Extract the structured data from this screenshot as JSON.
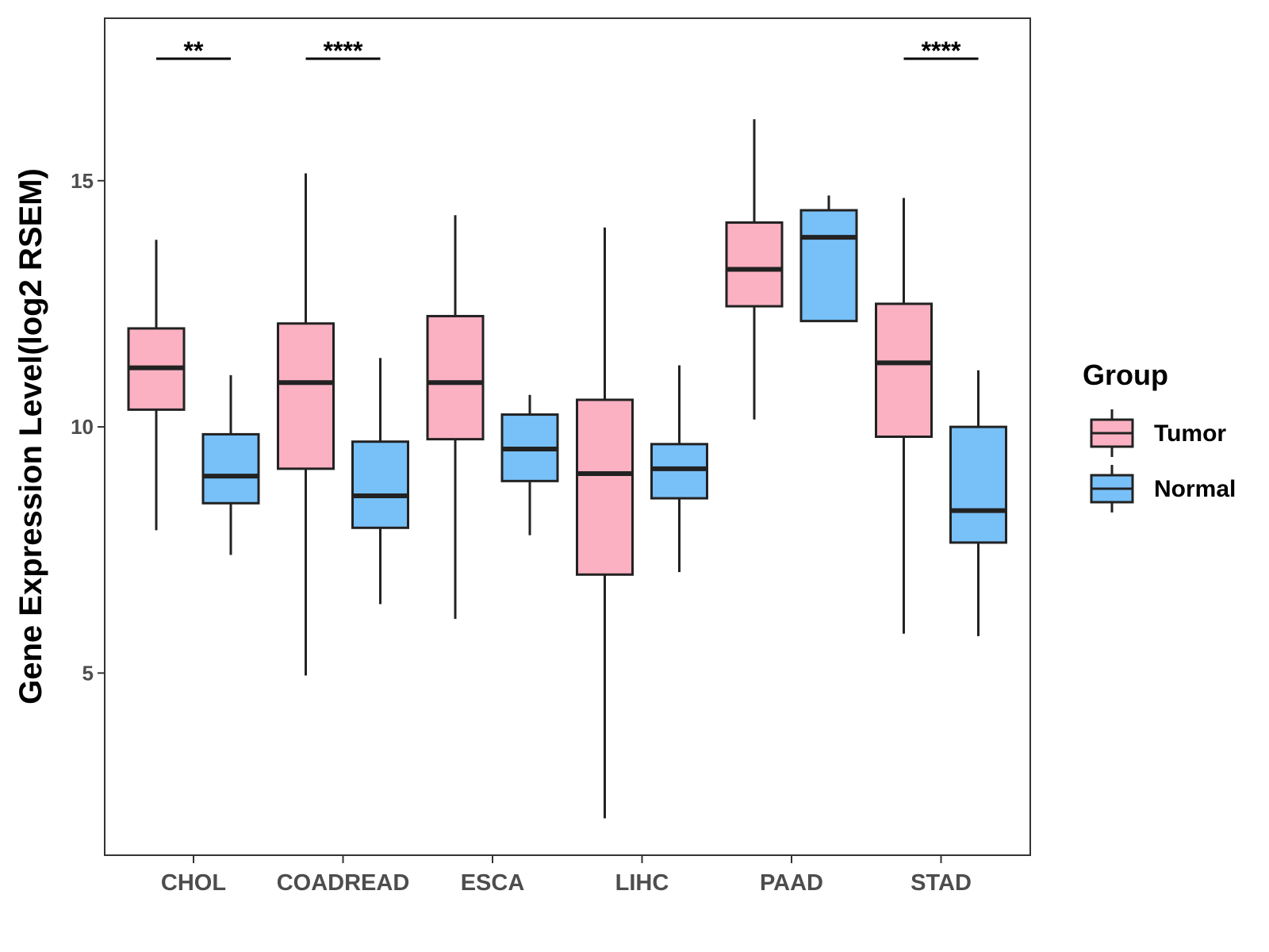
{
  "chart_data": {
    "type": "boxplot",
    "title": "",
    "xlabel": "",
    "ylabel": "Gene Expression Level(log2 RSEM)",
    "ylim": [
      1.3,
      18.3
    ],
    "yticks": [
      5,
      10,
      15
    ],
    "categories": [
      "CHOL",
      "COADREAD",
      "ESCA",
      "LIHC",
      "PAAD",
      "STAD"
    ],
    "legend": {
      "title": "Group",
      "placement": "right",
      "entries": [
        {
          "name": "Tumor",
          "color": "#FBB1C2"
        },
        {
          "name": "Normal",
          "color": "#78C0F8"
        }
      ]
    },
    "series": [
      {
        "name": "Tumor",
        "color": "#FBB1C2",
        "boxes": [
          {
            "category": "CHOL",
            "whisker_low": 7.9,
            "q1": 10.35,
            "median": 11.2,
            "q3": 12.0,
            "whisker_high": 13.8
          },
          {
            "category": "COADREAD",
            "whisker_low": 4.95,
            "q1": 9.15,
            "median": 10.9,
            "q3": 12.1,
            "whisker_high": 15.15
          },
          {
            "category": "ESCA",
            "whisker_low": 6.1,
            "q1": 9.75,
            "median": 10.9,
            "q3": 12.25,
            "whisker_high": 14.3
          },
          {
            "category": "LIHC",
            "whisker_low": 2.05,
            "q1": 7.0,
            "median": 9.05,
            "q3": 10.55,
            "whisker_high": 14.05
          },
          {
            "category": "PAAD",
            "whisker_low": 10.15,
            "q1": 12.45,
            "median": 13.2,
            "q3": 14.15,
            "whisker_high": 16.25
          },
          {
            "category": "STAD",
            "whisker_low": 5.8,
            "q1": 9.8,
            "median": 11.3,
            "q3": 12.5,
            "whisker_high": 14.65
          }
        ]
      },
      {
        "name": "Normal",
        "color": "#78C0F8",
        "boxes": [
          {
            "category": "CHOL",
            "whisker_low": 7.4,
            "q1": 8.45,
            "median": 9.0,
            "q3": 9.85,
            "whisker_high": 11.05
          },
          {
            "category": "COADREAD",
            "whisker_low": 6.4,
            "q1": 7.95,
            "median": 8.6,
            "q3": 9.7,
            "whisker_high": 11.4
          },
          {
            "category": "ESCA",
            "whisker_low": 7.8,
            "q1": 8.9,
            "median": 9.55,
            "q3": 10.25,
            "whisker_high": 10.65
          },
          {
            "category": "LIHC",
            "whisker_low": 7.05,
            "q1": 8.55,
            "median": 9.15,
            "q3": 9.65,
            "whisker_high": 11.25
          },
          {
            "category": "PAAD",
            "whisker_low": 12.15,
            "q1": 12.15,
            "median": 13.85,
            "q3": 14.4,
            "whisker_high": 14.7
          },
          {
            "category": "STAD",
            "whisker_low": 5.75,
            "q1": 7.65,
            "median": 8.3,
            "q3": 10.0,
            "whisker_high": 11.15
          }
        ]
      }
    ],
    "significance": [
      {
        "category": "CHOL",
        "label": "**"
      },
      {
        "category": "COADREAD",
        "label": "****"
      },
      {
        "category": "STAD",
        "label": "****"
      }
    ]
  }
}
